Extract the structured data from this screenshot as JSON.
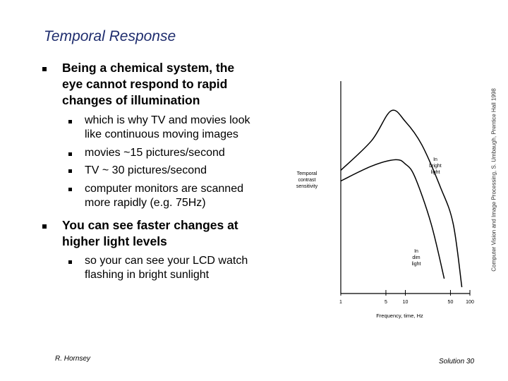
{
  "slide": {
    "title": "Temporal Response",
    "bullets": [
      {
        "text_lines": [
          "Being a chemical system, the",
          "eye cannot respond to rapid",
          "changes of illumination"
        ],
        "sub": [
          {
            "lines": [
              "which is why TV and movies look",
              "like continuous moving images"
            ]
          },
          {
            "lines": [
              "movies ~15 pictures/second"
            ]
          },
          {
            "lines": [
              "TV ~ 30 pictures/second"
            ]
          },
          {
            "lines": [
              "computer monitors are scanned",
              "more rapidly (e.g. 75Hz)"
            ]
          }
        ]
      },
      {
        "text_lines": [
          "You can see faster changes at",
          "higher light levels"
        ],
        "sub": [
          {
            "lines": [
              "so your can see your LCD watch",
              "flashing in bright sunlight"
            ]
          }
        ]
      }
    ],
    "footer_left": "R. Hornsey",
    "footer_right": "Solution 30",
    "credit": "Computer Vision and Image Processing, S. Umbaugh, Prentice Hall 1998"
  },
  "chart_data": {
    "type": "line",
    "xscale": "log",
    "xticks": [
      "1",
      "5",
      "10",
      "50",
      "100"
    ],
    "xlabel": "Frequency, time, Hz",
    "ylabel_lines": [
      "Temporal",
      "contrast",
      "sensitivity"
    ],
    "series": [
      {
        "name_lines": [
          "In",
          "bright",
          "light"
        ],
        "points": [
          [
            1,
            0.58
          ],
          [
            3,
            0.72
          ],
          [
            6,
            0.86
          ],
          [
            10,
            0.81
          ],
          [
            18,
            0.7
          ],
          [
            35,
            0.5
          ],
          [
            55,
            0.33
          ],
          [
            75,
            0.03
          ]
        ]
      },
      {
        "name_lines": [
          "In",
          "dim",
          "light"
        ],
        "points": [
          [
            1,
            0.53
          ],
          [
            3,
            0.6
          ],
          [
            7,
            0.63
          ],
          [
            10,
            0.61
          ],
          [
            14,
            0.55
          ],
          [
            25,
            0.33
          ],
          [
            40,
            0.07
          ]
        ]
      }
    ]
  }
}
